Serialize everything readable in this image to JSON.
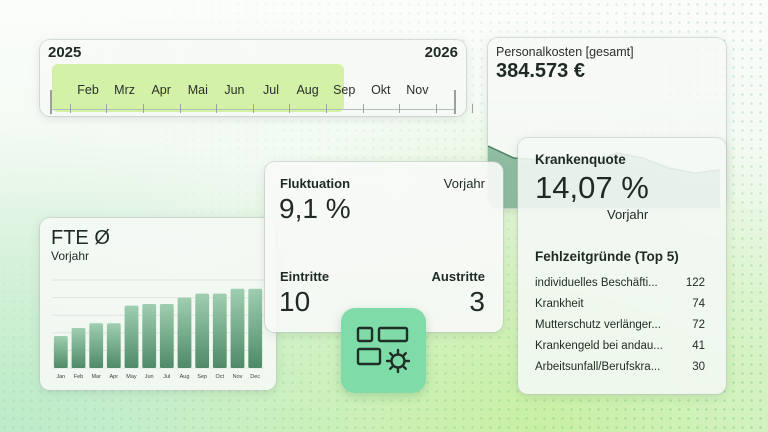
{
  "timeline": {
    "year_start": "2025",
    "year_end": "2026",
    "months": [
      "Feb",
      "Mrz",
      "Apr",
      "Mai",
      "Jun",
      "Jul",
      "Aug",
      "Sep",
      "Okt",
      "Nov"
    ],
    "highlight_color": "#d4f1a8"
  },
  "personalkosten": {
    "label": "Personalkosten [gesamt]",
    "value": "384.573 €",
    "trend": [
      62,
      50,
      48,
      48,
      46,
      55,
      50,
      40,
      35,
      38
    ]
  },
  "krankenquote": {
    "title": "Krankenquote",
    "value": "14,07 %",
    "comparison_label": "Vorjahr"
  },
  "fehlzeitgruende": {
    "title": "Fehlzeitgründe (Top 5)",
    "items": [
      {
        "label": "individuelles Beschäfti...",
        "value": "122"
      },
      {
        "label": "Krankheit",
        "value": "74"
      },
      {
        "label": "Mutterschutz verlänger...",
        "value": "72"
      },
      {
        "label": "Krankengeld bei andau...",
        "value": "41"
      },
      {
        "label": "Arbeitsunfall/Berufskra...",
        "value": "30"
      }
    ]
  },
  "fluktuation": {
    "title": "Fluktuation",
    "comparison_label": "Vorjahr",
    "value": "9,1 %",
    "eintritte_label": "Eintritte",
    "eintritte_value": "10",
    "austritte_label": "Austritte",
    "austritte_value": "3"
  },
  "fte": {
    "title": "FTE Ø",
    "subtitle": "Vorjahr"
  },
  "chart_data": {
    "type": "bar",
    "title": "FTE Ø",
    "categories": [
      "Jan",
      "Feb",
      "Mar",
      "Apr",
      "May",
      "Jun",
      "Jul",
      "Aug",
      "Sep",
      "Oct",
      "Nov",
      "Dec"
    ],
    "values": [
      40,
      50,
      56,
      56,
      78,
      80,
      80,
      88,
      93,
      93,
      99,
      99
    ],
    "ylim": [
      0,
      110
    ],
    "grid": true,
    "colors": {
      "bar_top": "#9fcfb0",
      "bar_bottom": "#4f8a68"
    }
  },
  "app_icon": {
    "name": "dashboard-app-icon",
    "color": "#7fdca8"
  }
}
